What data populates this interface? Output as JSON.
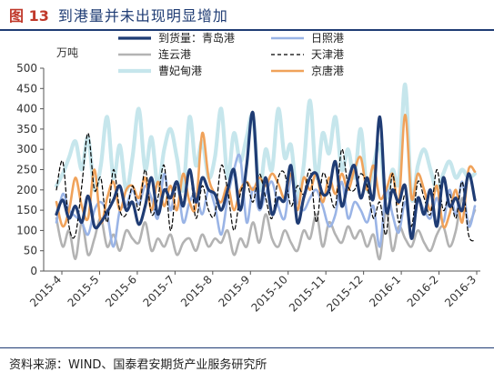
{
  "title": {
    "number": "图 13",
    "text": "到港量并未出现明显增加"
  },
  "source": "资料来源：WIND、国泰君安期货产业服务研究所",
  "chart_data": {
    "type": "line",
    "ylabel": "万吨",
    "ylim": [
      0,
      500
    ],
    "yticks": [
      0,
      50,
      100,
      150,
      200,
      250,
      300,
      350,
      400,
      450,
      500
    ],
    "xticks": [
      "2015-4",
      "2015-5",
      "2015-6",
      "2015-7",
      "2015-8",
      "2015-9",
      "2015-10",
      "2015-11",
      "2015-12",
      "2016-1",
      "2016-2",
      "2016-3"
    ],
    "grid": false,
    "legend_position": "top",
    "series": [
      {
        "name": "到货量：青岛港",
        "color": "#1f3c74",
        "width": 3.2,
        "dash": "",
        "values": [
          140,
          175,
          130,
          160,
          120,
          185,
          110,
          120,
          145,
          175,
          210,
          150,
          170,
          115,
          160,
          230,
          140,
          200,
          180,
          220,
          160,
          250,
          170,
          230,
          200,
          190,
          150,
          200,
          250,
          150,
          260,
          390,
          160,
          230,
          140,
          180,
          175,
          260,
          120,
          180,
          230,
          240,
          190,
          200,
          270,
          160,
          220,
          260,
          180,
          230,
          180,
          380,
          150,
          200,
          170,
          210,
          80,
          180,
          140,
          200,
          110,
          230,
          160,
          180,
          150,
          240,
          175
        ]
      },
      {
        "name": "日照港",
        "color": "#9ab4e6",
        "width": 2.6,
        "dash": "",
        "values": [
          120,
          190,
          150,
          135,
          120,
          90,
          150,
          170,
          140,
          60,
          150,
          160,
          200,
          165,
          210,
          180,
          130,
          240,
          150,
          220,
          120,
          170,
          190,
          140,
          200,
          160,
          90,
          180,
          250,
          280,
          120,
          205,
          150,
          190,
          220,
          160,
          130,
          230,
          170,
          150,
          180,
          200,
          160,
          110,
          140,
          220,
          130,
          170,
          150,
          120,
          160,
          60,
          200,
          140,
          95,
          170,
          90,
          170,
          150,
          130,
          180,
          120,
          200,
          140,
          220,
          110,
          160
        ]
      },
      {
        "name": "连云港",
        "color": "#b3b3b3",
        "width": 2.6,
        "dash": "",
        "values": [
          130,
          60,
          100,
          30,
          120,
          40,
          80,
          130,
          60,
          90,
          50,
          100,
          80,
          70,
          120,
          50,
          80,
          60,
          90,
          40,
          70,
          80,
          50,
          90,
          60,
          80,
          70,
          100,
          40,
          80,
          60,
          120,
          70,
          140,
          80,
          60,
          100,
          70,
          50,
          100,
          80,
          140,
          60,
          120,
          90,
          70,
          110,
          80,
          100,
          60,
          90,
          30,
          150,
          50,
          110,
          80,
          60,
          100,
          70,
          50,
          90,
          110,
          60,
          100,
          180,
          120,
          150
        ]
      },
      {
        "name": "天津港",
        "color": "#000000",
        "width": 1.2,
        "dash": "4,3",
        "values": [
          200,
          270,
          110,
          90,
          210,
          340,
          200,
          230,
          120,
          250,
          150,
          140,
          210,
          150,
          250,
          140,
          180,
          260,
          100,
          220,
          170,
          250,
          130,
          210,
          150,
          140,
          260,
          200,
          100,
          190,
          220,
          170,
          240,
          180,
          130,
          230,
          240,
          160,
          210,
          190,
          250,
          120,
          240,
          200,
          160,
          300,
          210,
          200,
          240,
          210,
          130,
          170,
          90,
          240,
          120,
          190,
          110,
          220,
          180,
          140,
          250,
          150,
          190,
          130,
          220,
          90,
          75
        ]
      },
      {
        "name": "曹妃甸港",
        "color": "#c6e6ec",
        "width": 4.2,
        "dash": "",
        "values": [
          210,
          240,
          280,
          320,
          250,
          330,
          200,
          260,
          380,
          230,
          310,
          200,
          280,
          400,
          250,
          330,
          210,
          300,
          350,
          280,
          200,
          380,
          260,
          320,
          230,
          280,
          400,
          230,
          340,
          270,
          330,
          380,
          200,
          300,
          250,
          400,
          280,
          310,
          180,
          260,
          420,
          230,
          340,
          290,
          380,
          250,
          300,
          230,
          350,
          200,
          260,
          310,
          180,
          250,
          220,
          460,
          180,
          260,
          300,
          250,
          200,
          240,
          270,
          230,
          250,
          230,
          240
        ]
      },
      {
        "name": "京唐港",
        "color": "#f0a25a",
        "width": 2.6,
        "dash": "",
        "values": [
          170,
          110,
          150,
          230,
          160,
          130,
          250,
          120,
          180,
          220,
          150,
          200,
          210,
          180,
          230,
          150,
          220,
          160,
          210,
          150,
          240,
          170,
          160,
          340,
          230,
          190,
          170,
          210,
          150,
          200,
          220,
          200,
          230,
          210,
          240,
          215,
          180,
          240,
          150,
          230,
          200,
          240,
          170,
          230,
          190,
          240,
          200,
          250,
          280,
          200,
          260,
          180,
          200,
          240,
          170,
          385,
          180,
          240,
          200,
          150,
          210,
          110,
          140,
          200,
          120,
          250,
          245
        ]
      }
    ]
  }
}
